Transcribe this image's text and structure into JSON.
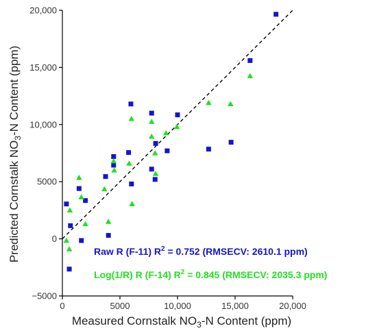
{
  "chart_data": {
    "type": "scatter",
    "xlabel_parts": [
      "Measured Cornstalk NO",
      "3",
      "-N Content (ppm)"
    ],
    "ylabel_parts": [
      "Predicted Cornstalk NO",
      "3",
      "-N Content  (ppm)"
    ],
    "xlim": [
      0,
      20000
    ],
    "ylim": [
      -5000,
      20000
    ],
    "x_ticks": [
      0,
      5000,
      10000,
      15000,
      20000
    ],
    "x_tick_labels": [
      "0",
      "5000",
      "10,000",
      "15,000",
      "20,000"
    ],
    "y_ticks": [
      -5000,
      0,
      5000,
      10000,
      15000,
      20000
    ],
    "y_tick_labels": [
      "−5000",
      "0",
      "5000",
      "10,000",
      "15,000",
      "20,000"
    ],
    "grid": false,
    "reference_line": {
      "style": "dashed",
      "color": "#000000"
    },
    "legend": [
      {
        "text_parts": [
          "Raw R (F-11) R",
          "2",
          " = 0.752 (RMSECV: 2610.1 ppm)"
        ],
        "color": "#1515cc"
      },
      {
        "text_parts": [
          "Log(1/R) R (F-14) R",
          "2",
          " = 0.845 (RMSECV: 2035.3 ppm)"
        ],
        "color": "#22e022"
      }
    ],
    "series": [
      {
        "marker": "square",
        "color": "#1515cc",
        "points": [
          [
            350,
            3050
          ],
          [
            600,
            -2650
          ],
          [
            700,
            1150
          ],
          [
            1450,
            4400
          ],
          [
            1650,
            -150
          ],
          [
            2000,
            3350
          ],
          [
            3750,
            5450
          ],
          [
            4000,
            300
          ],
          [
            4450,
            7200
          ],
          [
            4450,
            6450
          ],
          [
            5750,
            7550
          ],
          [
            5950,
            11800
          ],
          [
            6000,
            4800
          ],
          [
            7750,
            11000
          ],
          [
            7750,
            6100
          ],
          [
            8050,
            5200
          ],
          [
            8100,
            8350
          ],
          [
            9100,
            7700
          ],
          [
            10000,
            10850
          ],
          [
            12700,
            7850
          ],
          [
            14650,
            8450
          ],
          [
            16300,
            15600
          ],
          [
            18550,
            19650
          ]
        ]
      },
      {
        "marker": "triangle",
        "color": "#22e022",
        "points": [
          [
            350,
            -150
          ],
          [
            600,
            -900
          ],
          [
            650,
            2500
          ],
          [
            1450,
            5350
          ],
          [
            1650,
            3650
          ],
          [
            2000,
            1300
          ],
          [
            3650,
            4350
          ],
          [
            4000,
            1500
          ],
          [
            4450,
            6800
          ],
          [
            4500,
            6000
          ],
          [
            5800,
            6600
          ],
          [
            6000,
            10500
          ],
          [
            6050,
            3050
          ],
          [
            7750,
            10250
          ],
          [
            7750,
            8950
          ],
          [
            8050,
            7500
          ],
          [
            8100,
            5700
          ],
          [
            9000,
            9250
          ],
          [
            9950,
            9800
          ],
          [
            12700,
            11900
          ],
          [
            14600,
            11800
          ],
          [
            16300,
            14250
          ]
        ]
      }
    ]
  }
}
